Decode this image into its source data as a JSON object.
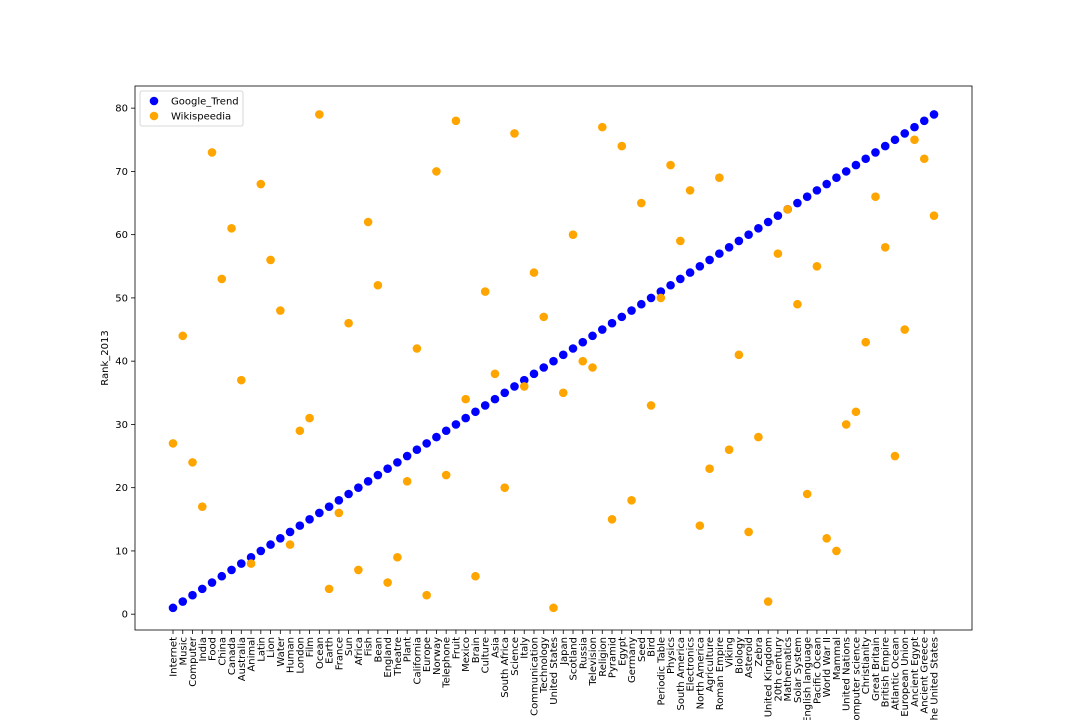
{
  "chart_data": {
    "type": "scatter",
    "title": "",
    "xlabel": "",
    "ylabel": "Rank_2013",
    "ylim": [
      -2.5,
      83.5
    ],
    "yticks": [
      0,
      10,
      20,
      30,
      40,
      50,
      60,
      70,
      80
    ],
    "grid": false,
    "legend_position": "top-left",
    "categories": [
      "Internet",
      "Music",
      "Computer",
      "India",
      "Food",
      "China",
      "Canada",
      "Australia",
      "Animal",
      "Latin",
      "Lion",
      "Water",
      "Human",
      "London",
      "Film",
      "Ocean",
      "Earth",
      "France",
      "Sun",
      "Africa",
      "Fish",
      "Bean",
      "England",
      "Theatre",
      "Plant",
      "California",
      "Europe",
      "Norway",
      "Telephone",
      "Fruit",
      "Mexico",
      "Brain",
      "Culture",
      "Asia",
      "South Africa",
      "Science",
      "Italy",
      "Communication",
      "Technology",
      "United States",
      "Japan",
      "Scotland",
      "Russia",
      "Television",
      "Religion",
      "Pyramid",
      "Egypt",
      "Germany",
      "Seed",
      "Bird",
      "Periodic Table",
      "Physics",
      "South America",
      "Electronics",
      "North America",
      "Agriculture",
      "Roman Empire",
      "Viking",
      "Biology",
      "Asteroid",
      "Zebra",
      "United Kingdom",
      "20th century",
      "Mathematics",
      "Solar System",
      "English language",
      "Pacific Ocean",
      "World War II",
      "Mammal",
      "United Nations",
      "Computer science",
      "Christianity",
      "Great Britain",
      "British Empire",
      "Atlantic Ocean",
      "European Union",
      "Ancient Egypt",
      "Ancient Greece",
      "The United States"
    ],
    "series": [
      {
        "name": "Google_Trend",
        "color": "#0000ff",
        "values": [
          1,
          2,
          3,
          4,
          5,
          6,
          7,
          8,
          9,
          10,
          11,
          12,
          13,
          14,
          15,
          16,
          17,
          18,
          19,
          20,
          21,
          22,
          23,
          24,
          25,
          26,
          27,
          28,
          29,
          30,
          31,
          32,
          33,
          34,
          35,
          36,
          37,
          38,
          39,
          40,
          41,
          42,
          43,
          44,
          45,
          46,
          47,
          48,
          49,
          50,
          51,
          52,
          53,
          54,
          55,
          56,
          57,
          58,
          59,
          60,
          61,
          62,
          63,
          64,
          65,
          66,
          67,
          68,
          69,
          70,
          71,
          72,
          73,
          74,
          75,
          76,
          77,
          78,
          79
        ]
      },
      {
        "name": "Wikispeedia",
        "color": "#ffa500",
        "values": [
          27,
          44,
          24,
          17,
          73,
          53,
          61,
          37,
          8,
          68,
          56,
          48,
          11,
          29,
          31,
          79,
          4,
          16,
          46,
          7,
          62,
          52,
          5,
          9,
          21,
          42,
          3,
          70,
          22,
          78,
          34,
          6,
          51,
          38,
          20,
          76,
          36,
          54,
          47,
          1,
          35,
          60,
          40,
          39,
          77,
          15,
          74,
          18,
          65,
          33,
          50,
          71,
          59,
          67,
          14,
          23,
          69,
          26,
          41,
          13,
          28,
          2,
          57,
          64,
          49,
          19,
          55,
          12,
          10,
          30,
          32,
          43,
          66,
          58,
          25,
          45,
          75,
          72,
          63
        ]
      }
    ]
  }
}
